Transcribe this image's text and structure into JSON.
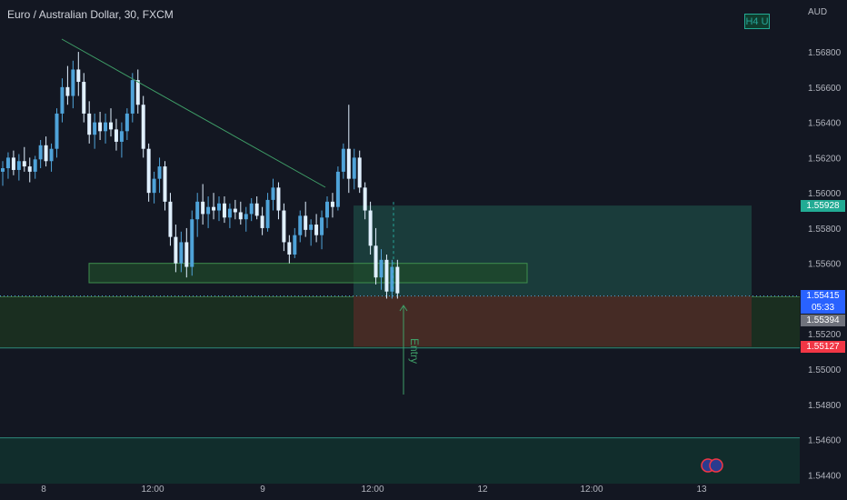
{
  "header": {
    "symbol_title": "Euro / Australian Dollar, 30, FXCM",
    "timeframe_badge": "H4 U",
    "currency": "AUD"
  },
  "price_labels": {
    "target": "1.55928",
    "last": "1.55415",
    "countdown": "05:33",
    "grey": "1.55394",
    "stop": "1.55127"
  },
  "annotation": {
    "entry_text": "Entry"
  },
  "colors": {
    "background": "#131722",
    "up": "#4fa3d9",
    "down": "#e0f0ff",
    "profit_zone": "#1d4a44",
    "loss_zone": "#4a2b26",
    "green_zone": "#1c3320",
    "target_badge": "#22ab94",
    "stop_badge": "#f23645",
    "last_badge": "#2962ff"
  },
  "chart_data": {
    "type": "candlestick",
    "title": "Euro / Australian Dollar, 30, FXCM",
    "y_axis": {
      "label": "AUD",
      "range": [
        1.5435,
        1.5695
      ],
      "ticks": [
        "1.56800",
        "1.56600",
        "1.56400",
        "1.56200",
        "1.56000",
        "1.55800",
        "1.55600",
        "1.55400",
        "1.55200",
        "1.55000",
        "1.54800",
        "1.54600",
        "1.54400"
      ]
    },
    "x_axis": {
      "ticks": [
        "8",
        "12:00",
        "9",
        "12:00",
        "12",
        "12:00",
        "13"
      ]
    },
    "levels": {
      "target": 1.55928,
      "last": 1.55415,
      "grey": 1.55394,
      "stop": 1.55127
    },
    "series": [
      {
        "ohlc": [
          [
            1.5612,
            1.5618,
            1.5604,
            1.5614
          ],
          [
            1.5614,
            1.5623,
            1.5608,
            1.562
          ],
          [
            1.562,
            1.5624,
            1.561,
            1.5613
          ],
          [
            1.5613,
            1.5622,
            1.5607,
            1.5618
          ],
          [
            1.5618,
            1.5626,
            1.5612,
            1.5615
          ],
          [
            1.5615,
            1.562,
            1.5606,
            1.5612
          ],
          [
            1.5612,
            1.5621,
            1.5608,
            1.5619
          ],
          [
            1.5619,
            1.563,
            1.5614,
            1.5627
          ],
          [
            1.5627,
            1.5632,
            1.5615,
            1.5618
          ],
          [
            1.5618,
            1.5628,
            1.5612,
            1.5625
          ],
          [
            1.5625,
            1.5648,
            1.562,
            1.5645
          ],
          [
            1.5645,
            1.5665,
            1.564,
            1.566
          ],
          [
            1.566,
            1.5672,
            1.565,
            1.5655
          ],
          [
            1.5655,
            1.5675,
            1.5648,
            1.567
          ],
          [
            1.567,
            1.568,
            1.5655,
            1.5663
          ],
          [
            1.5663,
            1.5668,
            1.564,
            1.5645
          ],
          [
            1.5645,
            1.5652,
            1.5628,
            1.5633
          ],
          [
            1.5633,
            1.5645,
            1.5625,
            1.564
          ],
          [
            1.564,
            1.5646,
            1.563,
            1.5635
          ],
          [
            1.5635,
            1.5645,
            1.5628,
            1.564
          ],
          [
            1.564,
            1.5648,
            1.5632,
            1.5636
          ],
          [
            1.5636,
            1.5642,
            1.5624,
            1.5629
          ],
          [
            1.5629,
            1.564,
            1.562,
            1.5635
          ],
          [
            1.5635,
            1.5648,
            1.563,
            1.5645
          ],
          [
            1.5645,
            1.5668,
            1.564,
            1.5664
          ],
          [
            1.5664,
            1.567,
            1.5645,
            1.565
          ],
          [
            1.565,
            1.5655,
            1.562,
            1.5625
          ],
          [
            1.5625,
            1.5628,
            1.5595,
            1.56
          ],
          [
            1.56,
            1.5612,
            1.5594,
            1.5608
          ],
          [
            1.5608,
            1.562,
            1.56,
            1.5615
          ],
          [
            1.5615,
            1.5618,
            1.559,
            1.5595
          ],
          [
            1.5595,
            1.56,
            1.557,
            1.5575
          ],
          [
            1.5575,
            1.5582,
            1.5555,
            1.556
          ],
          [
            1.556,
            1.5578,
            1.5555,
            1.5572
          ],
          [
            1.5572,
            1.558,
            1.5552,
            1.5558
          ],
          [
            1.5558,
            1.559,
            1.5553,
            1.5585
          ],
          [
            1.5585,
            1.56,
            1.5575,
            1.5595
          ],
          [
            1.5595,
            1.5605,
            1.5582,
            1.5588
          ],
          [
            1.5588,
            1.5598,
            1.558,
            1.5592
          ],
          [
            1.5592,
            1.56,
            1.5585,
            1.559
          ],
          [
            1.559,
            1.5598,
            1.5584,
            1.5594
          ],
          [
            1.5594,
            1.5598,
            1.5583,
            1.5586
          ],
          [
            1.5586,
            1.5594,
            1.558,
            1.5591
          ],
          [
            1.5591,
            1.5596,
            1.5585,
            1.5589
          ],
          [
            1.5589,
            1.5595,
            1.5582,
            1.5585
          ],
          [
            1.5585,
            1.5592,
            1.5578,
            1.5588
          ],
          [
            1.5588,
            1.5597,
            1.5584,
            1.5594
          ],
          [
            1.5594,
            1.5598,
            1.5585,
            1.5587
          ],
          [
            1.5587,
            1.5592,
            1.5576,
            1.558
          ],
          [
            1.558,
            1.56,
            1.5578,
            1.5596
          ],
          [
            1.5596,
            1.5608,
            1.559,
            1.5603
          ],
          [
            1.5603,
            1.5606,
            1.5585,
            1.559
          ],
          [
            1.559,
            1.5594,
            1.5567,
            1.5572
          ],
          [
            1.5572,
            1.5576,
            1.556,
            1.5565
          ],
          [
            1.5565,
            1.558,
            1.5563,
            1.5576
          ],
          [
            1.5576,
            1.559,
            1.5572,
            1.5587
          ],
          [
            1.5587,
            1.5595,
            1.5575,
            1.5579
          ],
          [
            1.5579,
            1.5585,
            1.557,
            1.5582
          ],
          [
            1.5582,
            1.5588,
            1.5572,
            1.5576
          ],
          [
            1.5576,
            1.559,
            1.5568,
            1.5586
          ],
          [
            1.5586,
            1.5598,
            1.558,
            1.5595
          ],
          [
            1.5595,
            1.56,
            1.5586,
            1.5592
          ],
          [
            1.5592,
            1.5615,
            1.559,
            1.5612
          ],
          [
            1.5612,
            1.5628,
            1.5608,
            1.5625
          ],
          [
            1.5625,
            1.565,
            1.56,
            1.5608
          ],
          [
            1.5608,
            1.5625,
            1.5602,
            1.562
          ],
          [
            1.562,
            1.5624,
            1.56,
            1.5603
          ],
          [
            1.5603,
            1.5606,
            1.5585,
            1.559
          ],
          [
            1.559,
            1.5595,
            1.5565,
            1.557
          ],
          [
            1.557,
            1.558,
            1.5548,
            1.5552
          ],
          [
            1.5552,
            1.5568,
            1.5545,
            1.5562
          ],
          [
            1.5562,
            1.5565,
            1.554,
            1.5544
          ],
          [
            1.5544,
            1.5562,
            1.554,
            1.5558
          ],
          [
            1.5558,
            1.5562,
            1.554,
            1.5543
          ]
        ]
      }
    ]
  }
}
